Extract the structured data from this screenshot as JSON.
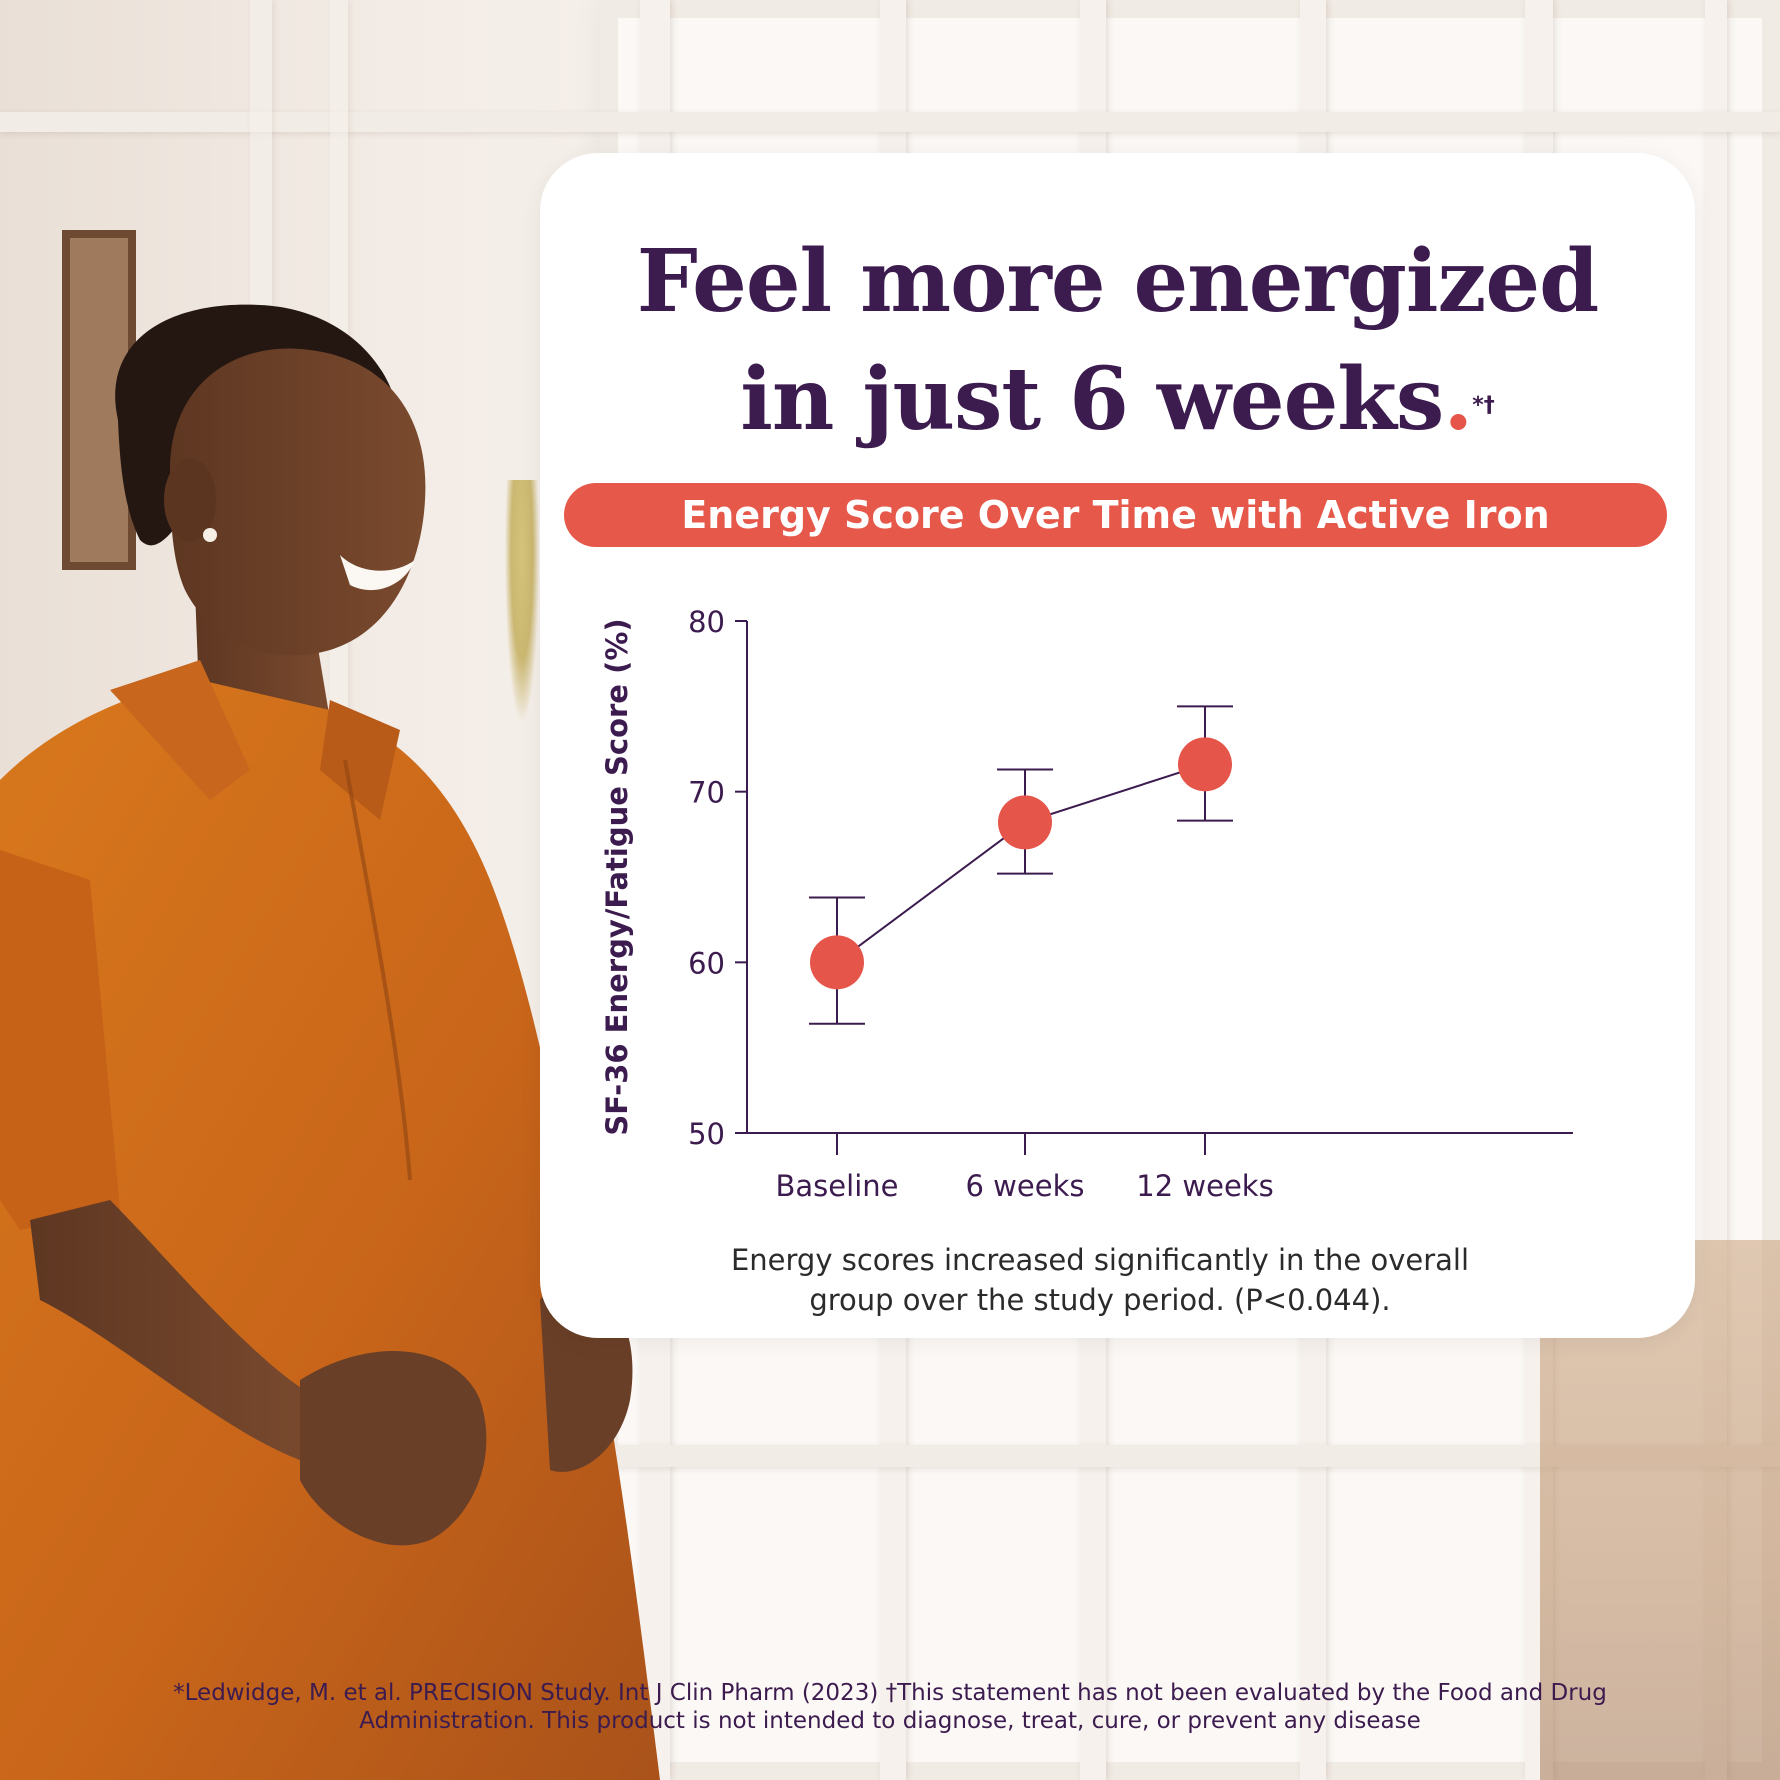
{
  "headline": {
    "line1": "Feel more energized",
    "line2": "in just 6 weeks",
    "marks": "*†",
    "period": "."
  },
  "colors": {
    "headline": "#3c1b4f",
    "accent": "#e5554a",
    "axis": "#3c1b4f",
    "card": "#ffffff"
  },
  "chart_data": {
    "type": "scatter",
    "title": "Energy Score Over Time with Active Iron",
    "ylabel": "SF-36 Energy/Fatigue Score (%)",
    "xlabel": "",
    "categories": [
      "Baseline",
      "6 weeks",
      "12 weeks"
    ],
    "series": [
      {
        "values": [
          60.0,
          68.2,
          71.6
        ],
        "error_low": [
          56.4,
          65.2,
          68.3
        ],
        "error_high": [
          63.8,
          71.3,
          75.0
        ]
      }
    ],
    "connected": true,
    "error_bars": true,
    "ylim": [
      50,
      80
    ],
    "yticks": [
      50,
      60,
      70,
      80
    ],
    "grid": false,
    "legend": "none"
  },
  "caption": {
    "line1": "Energy scores increased significantly in the overall",
    "line2": "group over the study period. (P<0.044)."
  },
  "footnote": {
    "line1": "*Ledwidge, M. et al. PRECISION Study. Int J Clin Pharm (2023) †This statement has not been evaluated by the Food and Drug",
    "line2": "Administration. This product is not intended to diagnose, treat, cure, or prevent any disease"
  }
}
